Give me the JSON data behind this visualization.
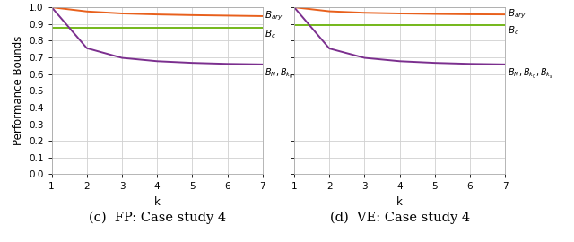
{
  "fp": {
    "k": [
      1,
      2,
      3,
      4,
      5,
      6,
      7
    ],
    "orange_curve": [
      1.0,
      0.975,
      0.963,
      0.957,
      0.953,
      0.95,
      0.947
    ],
    "green_line": 0.875,
    "purple_curve": [
      1.0,
      0.755,
      0.697,
      0.677,
      0.667,
      0.661,
      0.658
    ],
    "title": "(c)  FP: Case study 4"
  },
  "ve": {
    "k": [
      1,
      2,
      3,
      4,
      5,
      6,
      7
    ],
    "orange_curve": [
      1.0,
      0.976,
      0.967,
      0.963,
      0.96,
      0.958,
      0.957
    ],
    "green_line": 0.895,
    "purple_curve": [
      1.0,
      0.753,
      0.697,
      0.677,
      0.667,
      0.661,
      0.658
    ],
    "title": "(d)  VE: Case study 4"
  },
  "orange_color": "#e8601c",
  "green_color": "#74b81a",
  "purple_color": "#7b2f8e",
  "ylabel": "Performance Bounds",
  "xlabel": "k",
  "ylim": [
    0,
    1.0
  ],
  "yticks": [
    0,
    0.1,
    0.2,
    0.3,
    0.4,
    0.5,
    0.6,
    0.7,
    0.8,
    0.9,
    1.0
  ],
  "xticks": [
    1,
    2,
    3,
    4,
    5,
    6,
    7
  ],
  "label_bary": "$B_{ary}$",
  "label_bc": "$B_c$",
  "label_bN": "$B_N,B_{k_0},B_{k_s}$",
  "title_fontsize": 10.5,
  "axis_fontsize": 8.5,
  "tick_fontsize": 7.5,
  "annotation_fontsize": 7.5,
  "linewidth": 1.4,
  "bg_color": "#ffffff",
  "grid_color": "#d0d0d0"
}
